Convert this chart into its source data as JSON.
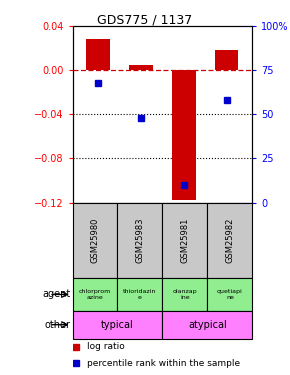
{
  "title": "GDS775 / 1137",
  "samples": [
    "GSM25980",
    "GSM25983",
    "GSM25981",
    "GSM25982"
  ],
  "log_ratios": [
    0.028,
    0.005,
    -0.118,
    0.018
  ],
  "percentile_ranks": [
    68,
    48,
    10,
    58
  ],
  "agents": [
    "chlorprom\nazine",
    "thioridazin\ne",
    "olanzap\nine",
    "quetiapi\nne"
  ],
  "other_groups": [
    [
      "typical",
      2
    ],
    [
      "atypical",
      2
    ]
  ],
  "other_color": "#FF80FF",
  "ylim_left": [
    -0.12,
    0.04
  ],
  "ylim_right": [
    0,
    100
  ],
  "bar_color": "#CC0000",
  "blue_color": "#0000CC",
  "dashed_line_color": "#CC0000",
  "bg_color": "#FFFFFF",
  "grid_color": "#000000",
  "label_row_bg": "#C8C8C8",
  "agent_color": "#90EE90",
  "legend_red_label": "log ratio",
  "legend_blue_label": "percentile rank within the sample"
}
